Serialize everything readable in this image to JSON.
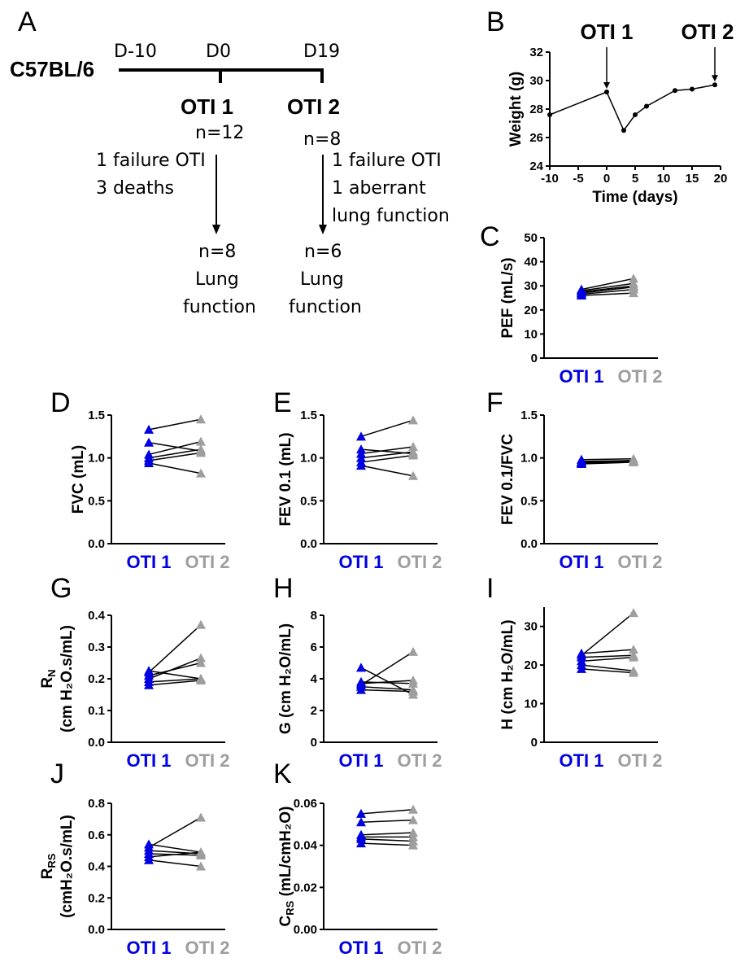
{
  "colors": {
    "otiA": "#0000e0",
    "otiB": "#9e9e9e",
    "line": "#000000"
  },
  "timeline": {
    "strain": "C57BL/6",
    "days": [
      "D-10",
      "D0",
      "D19"
    ],
    "procedures": [
      "OTI 1",
      "OTI 2"
    ],
    "n_start": [
      "n=12",
      "n=8"
    ],
    "notes_1": [
      "1 failure OTI",
      "3 deaths"
    ],
    "notes_2": [
      "1 failure OTI",
      "1 aberrant",
      "lung function"
    ],
    "n_end": [
      "n=8",
      "n=6"
    ],
    "endpoint": [
      "Lung",
      "function"
    ]
  },
  "chart_data": [
    {
      "panel": "B",
      "type": "line",
      "xlabel": "Time (days)",
      "ylabel": "Weight (g)",
      "xlim": [
        -10,
        20
      ],
      "ylim": [
        24,
        32
      ],
      "xticks": [
        -10,
        -5,
        0,
        5,
        10,
        15,
        20
      ],
      "yticks": [
        24,
        26,
        28,
        30,
        32
      ],
      "x": [
        -10,
        0,
        3,
        5,
        7,
        12,
        15,
        19
      ],
      "values": [
        27.6,
        29.2,
        26.5,
        27.6,
        28.2,
        29.3,
        29.4,
        29.7
      ],
      "annotations": [
        {
          "text": "OTI 1",
          "x": 0
        },
        {
          "text": "OTI 2",
          "x": 19
        }
      ]
    },
    {
      "panel": "C",
      "type": "scatter",
      "ylabel": "PEF (mL/s)",
      "ylim": [
        0,
        50
      ],
      "yticks": [
        0,
        10,
        20,
        30,
        40,
        50
      ],
      "categories": [
        "OTI 1",
        "OTI 2"
      ],
      "pairs": [
        [
          28.5,
          33
        ],
        [
          28,
          31
        ],
        [
          27.5,
          30
        ],
        [
          27,
          29.5
        ],
        [
          26.5,
          28.5
        ],
        [
          26,
          27
        ]
      ]
    },
    {
      "panel": "D",
      "type": "scatter",
      "ylabel": "FVC (mL)",
      "ylim": [
        0,
        1.5
      ],
      "yticks": [
        "0.0",
        "0.5",
        "1.0",
        "1.5"
      ],
      "categories": [
        "OTI 1",
        "OTI 2"
      ],
      "pairs": [
        [
          1.33,
          1.45
        ],
        [
          1.18,
          1.08
        ],
        [
          1.04,
          1.19
        ],
        [
          1.0,
          1.1
        ],
        [
          0.97,
          1.06
        ],
        [
          0.94,
          0.82
        ]
      ]
    },
    {
      "panel": "E",
      "type": "scatter",
      "ylabel": "FEV 0.1 (mL)",
      "ylim": [
        0,
        1.5
      ],
      "yticks": [
        "0.0",
        "0.5",
        "1.0",
        "1.5"
      ],
      "categories": [
        "OTI 1",
        "OTI 2"
      ],
      "pairs": [
        [
          1.25,
          1.44
        ],
        [
          1.1,
          1.05
        ],
        [
          1.05,
          1.13
        ],
        [
          1.0,
          1.07
        ],
        [
          0.95,
          1.03
        ],
        [
          0.91,
          0.79
        ]
      ]
    },
    {
      "panel": "F",
      "type": "scatter",
      "ylabel": "FEV 0.1/FVC",
      "ylim": [
        0,
        1.5
      ],
      "yticks": [
        "0.0",
        "0.5",
        "1.0",
        "1.5"
      ],
      "categories": [
        "OTI 1",
        "OTI 2"
      ],
      "pairs": [
        [
          0.98,
          0.99
        ],
        [
          0.96,
          0.97
        ],
        [
          0.95,
          0.97
        ],
        [
          0.94,
          0.96
        ],
        [
          0.94,
          0.96
        ],
        [
          0.93,
          0.95
        ]
      ]
    },
    {
      "panel": "G",
      "type": "scatter",
      "ylabel": "(cm H₂O.s/mL)",
      "ylabel2": "R",
      "ylabel2_sub": "N",
      "ylim": [
        0,
        0.4
      ],
      "yticks": [
        "0.0",
        "0.1",
        "0.2",
        "0.3",
        "0.4"
      ],
      "categories": [
        "OTI 1",
        "OTI 2"
      ],
      "pairs": [
        [
          0.225,
          0.2
        ],
        [
          0.22,
          0.37
        ],
        [
          0.21,
          0.25
        ],
        [
          0.2,
          0.265
        ],
        [
          0.19,
          0.2
        ],
        [
          0.18,
          0.195
        ]
      ]
    },
    {
      "panel": "H",
      "type": "scatter",
      "ylabel": "G (cm H₂O/mL)",
      "ylim": [
        0,
        8
      ],
      "yticks": [
        "0",
        "2",
        "4",
        "6",
        "8"
      ],
      "categories": [
        "OTI 1",
        "OTI 2"
      ],
      "pairs": [
        [
          4.7,
          3.0
        ],
        [
          3.8,
          3.7
        ],
        [
          3.7,
          3.9
        ],
        [
          3.6,
          5.7
        ],
        [
          3.5,
          3.3
        ],
        [
          3.3,
          3.2
        ]
      ]
    },
    {
      "panel": "I",
      "type": "scatter",
      "ylabel": "H (cm H₂O/mL)",
      "ylim": [
        0,
        35
      ],
      "yticks": [
        "0",
        "10",
        "20",
        "30"
      ],
      "categories": [
        "OTI 1",
        "OTI 2"
      ],
      "pairs": [
        [
          23,
          24
        ],
        [
          22.5,
          33.5
        ],
        [
          22,
          22.5
        ],
        [
          21,
          22
        ],
        [
          20,
          18.5
        ],
        [
          19,
          18
        ]
      ]
    },
    {
      "panel": "J",
      "type": "scatter",
      "ylabel": "(cmH₂O.s/mL)",
      "ylabel2": "R",
      "ylabel2_sub": "RS",
      "ylim": [
        0,
        0.8
      ],
      "yticks": [
        "0.0",
        "0.2",
        "0.4",
        "0.6",
        "0.8"
      ],
      "categories": [
        "OTI 1",
        "OTI 2"
      ],
      "pairs": [
        [
          0.54,
          0.49
        ],
        [
          0.52,
          0.71
        ],
        [
          0.5,
          0.48
        ],
        [
          0.48,
          0.47
        ],
        [
          0.46,
          0.49
        ],
        [
          0.44,
          0.4
        ]
      ]
    },
    {
      "panel": "K",
      "type": "scatter",
      "ylabel": "C",
      "ylabel_sub": "RS",
      "ylabel_rest": " (mL/cmH₂O)",
      "ylim": [
        0,
        0.06
      ],
      "yticks": [
        "0.00",
        "0.02",
        "0.04",
        "0.06"
      ],
      "categories": [
        "OTI 1",
        "OTI 2"
      ],
      "pairs": [
        [
          0.055,
          0.057
        ],
        [
          0.051,
          0.052
        ],
        [
          0.045,
          0.046
        ],
        [
          0.044,
          0.044
        ],
        [
          0.043,
          0.042
        ],
        [
          0.041,
          0.04
        ]
      ]
    }
  ]
}
